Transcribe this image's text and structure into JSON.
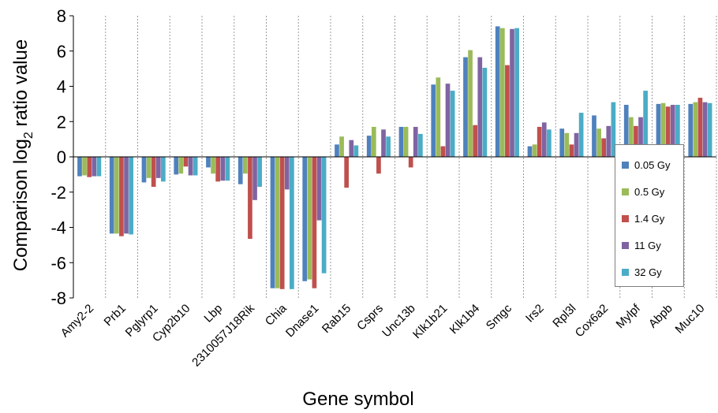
{
  "chart_data": {
    "type": "bar",
    "title": "",
    "xlabel": "Gene symbol",
    "ylabel": "Comparison log2 ratio value",
    "ylabel_parts": {
      "prefix": "Comparison log",
      "subscript": "2",
      "suffix": " ratio value"
    },
    "ylim": [
      -8,
      8
    ],
    "yticks": [
      -8,
      -6,
      -4,
      -2,
      0,
      2,
      4,
      6,
      8
    ],
    "grid": "vertical dashed lines between categories",
    "legend_position": "right",
    "categories": [
      "Amy2-2",
      "Prb1",
      "Pglyrp1",
      "Cyp2b10",
      "Lbp",
      "2310057J18Rik",
      "Chia",
      "Dnase1",
      "Rab15",
      "Csprs",
      "Unc13b",
      "Klk1b21",
      "Klk1b4",
      "Smgc",
      "Irs2",
      "Rpl3l",
      "Cox6a2",
      "Mylpf",
      "Abpb",
      "Muc10"
    ],
    "series": [
      {
        "name": "0.05 Gy",
        "color": "#4f81bd",
        "values": [
          -1.1,
          -4.35,
          -1.45,
          -1.0,
          -0.6,
          -1.55,
          -7.45,
          -7.05,
          0.7,
          1.2,
          1.7,
          4.1,
          5.65,
          7.4,
          0.6,
          1.6,
          2.35,
          2.95,
          3.0,
          3.0
        ]
      },
      {
        "name": "0.5 Gy",
        "color": "#9bbb59",
        "values": [
          -1.05,
          -4.35,
          -1.2,
          -0.95,
          -0.95,
          -0.95,
          -7.45,
          -6.95,
          1.15,
          1.7,
          1.7,
          4.5,
          6.05,
          7.3,
          0.7,
          1.35,
          1.6,
          2.25,
          3.05,
          3.1
        ]
      },
      {
        "name": "1.4 Gy",
        "color": "#c0504d",
        "values": [
          -1.15,
          -4.5,
          -1.7,
          -0.55,
          -1.4,
          -4.65,
          -7.5,
          -7.45,
          -1.75,
          -0.95,
          -0.6,
          0.6,
          1.8,
          5.2,
          1.7,
          0.7,
          1.05,
          1.75,
          2.85,
          3.35
        ]
      },
      {
        "name": "11 Gy",
        "color": "#8064a2",
        "values": [
          -1.1,
          -4.35,
          -1.2,
          -1.05,
          -1.35,
          -2.45,
          -1.85,
          -3.6,
          0.95,
          1.55,
          1.7,
          4.15,
          5.65,
          7.25,
          1.95,
          1.35,
          1.75,
          2.25,
          2.95,
          3.1
        ]
      },
      {
        "name": "32 Gy",
        "color": "#4bacc6",
        "values": [
          -1.1,
          -4.4,
          -1.4,
          -1.05,
          -1.35,
          -1.7,
          -7.5,
          -6.6,
          0.65,
          1.15,
          1.3,
          3.75,
          5.05,
          7.3,
          1.55,
          2.5,
          3.1,
          3.75,
          2.95,
          3.05
        ]
      }
    ]
  }
}
